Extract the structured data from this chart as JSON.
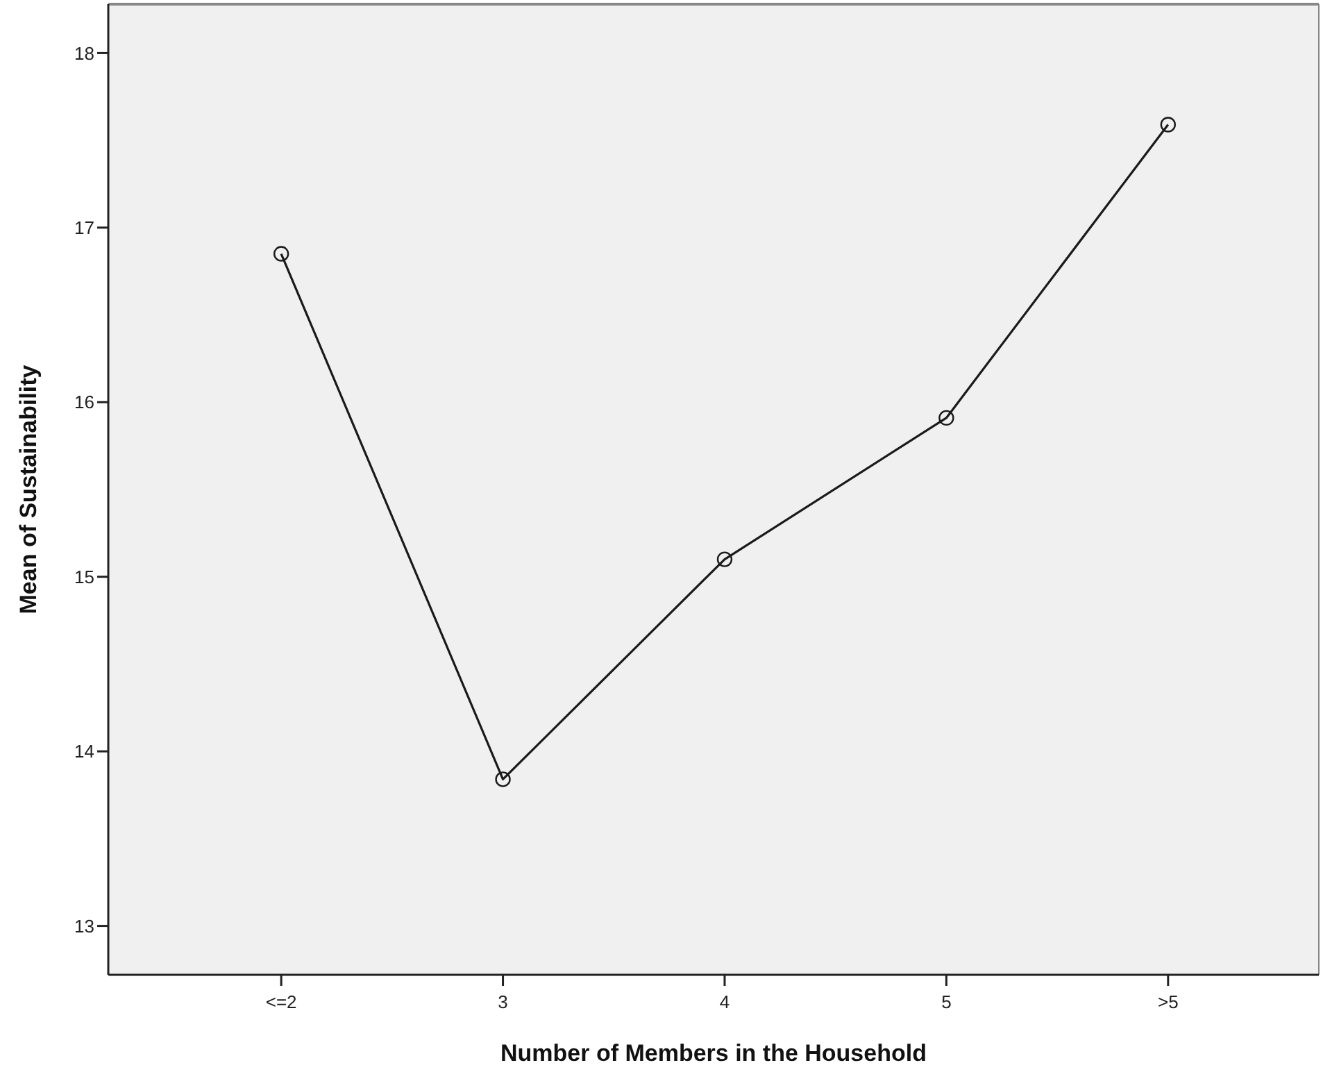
{
  "chart_data": {
    "type": "line",
    "xlabel": "Number of Members in the Household",
    "ylabel": "Mean of Sustainability",
    "categories": [
      "<=2",
      "3",
      "4",
      "5",
      ">5"
    ],
    "series": [
      {
        "color": "#1a1a1a",
        "values": [
          16.85,
          13.84,
          15.1,
          15.91,
          17.59
        ]
      }
    ],
    "ylim": [
      12.72,
      18.28
    ],
    "yticks": [
      13,
      14,
      15,
      16,
      17,
      18
    ],
    "marker": "circle",
    "line_style": "solid"
  }
}
